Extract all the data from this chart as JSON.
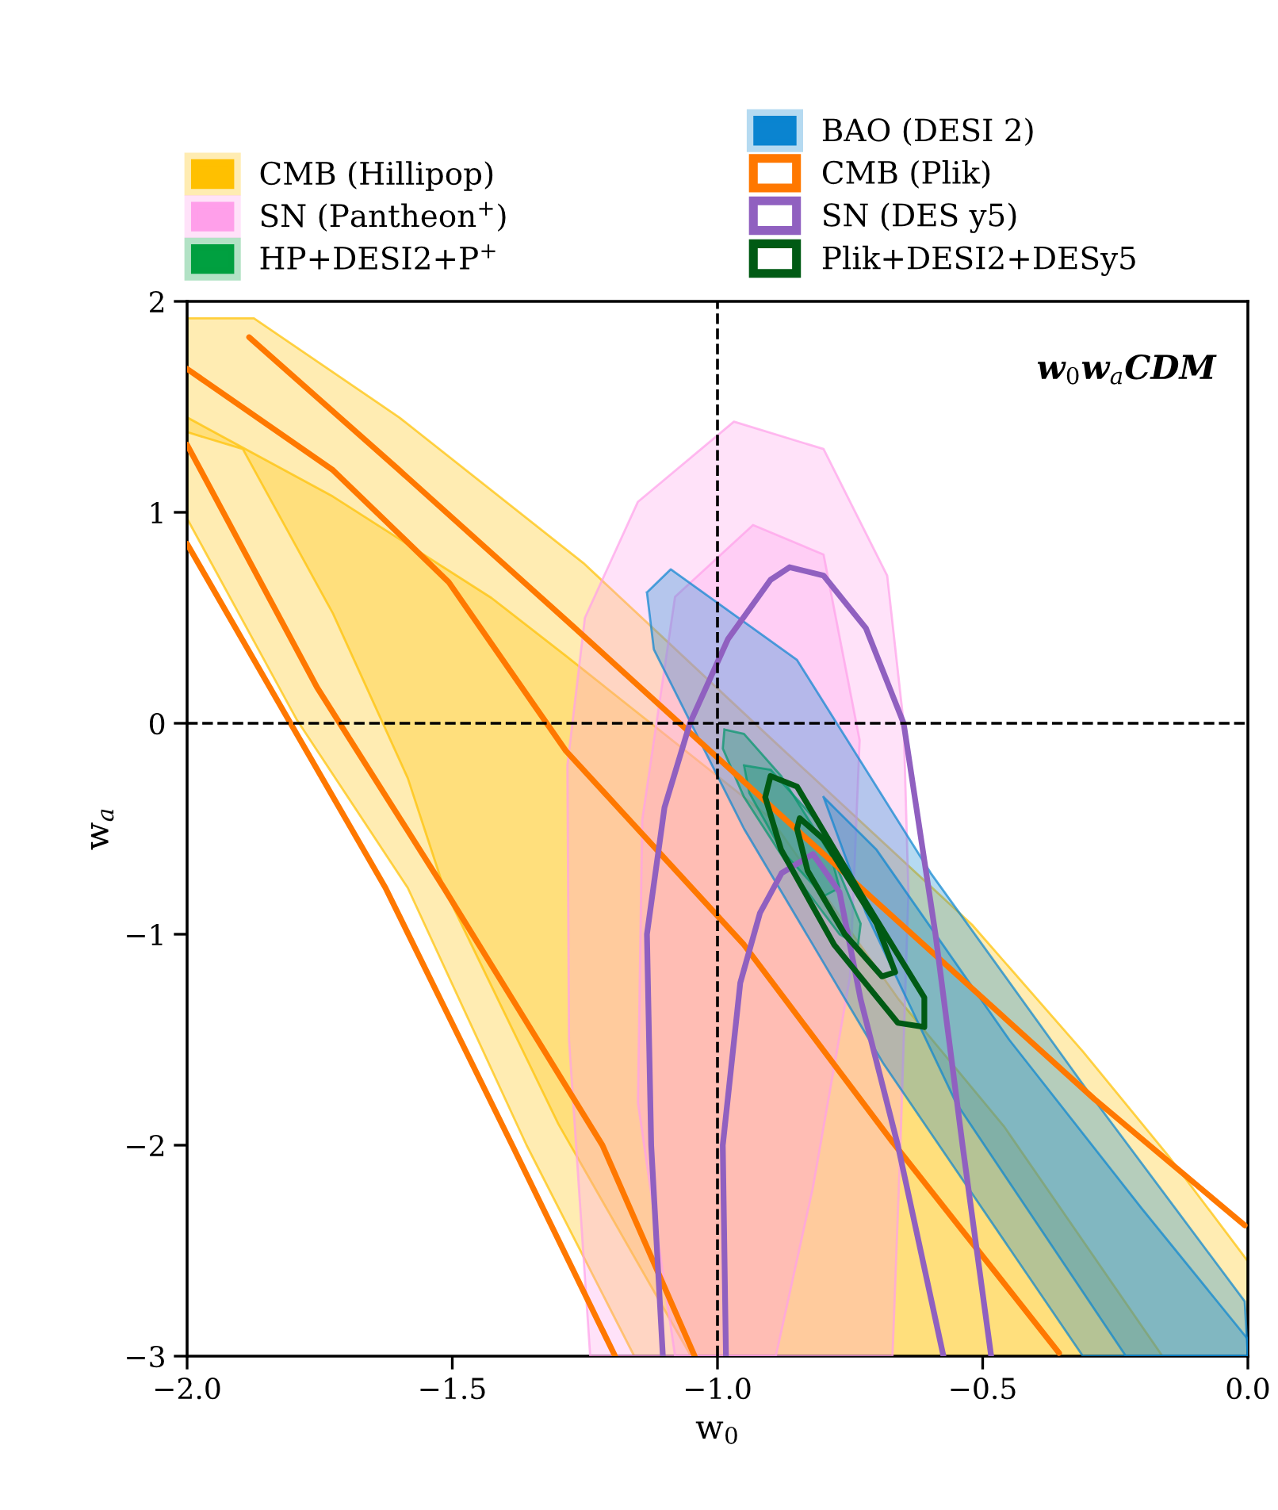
{
  "chart_data": {
    "type": "area",
    "title": "w$_{0}$w$_{a}$CDM",
    "xlabel": "w$_{0}$",
    "ylabel": "w$_{a}$",
    "xlim": [
      -2.0,
      0.0
    ],
    "ylim": [
      -3,
      2
    ],
    "xticks": [
      {
        "value": -2.0,
        "label": "−2.0"
      },
      {
        "value": -1.5,
        "label": "−1.5"
      },
      {
        "value": -1.0,
        "label": "−1.0"
      },
      {
        "value": -0.5,
        "label": "−0.5"
      },
      {
        "value": 0.0,
        "label": "0.0"
      }
    ],
    "yticks": [
      {
        "value": -3,
        "label": "−3"
      },
      {
        "value": -2,
        "label": "−2"
      },
      {
        "value": -1,
        "label": "−1"
      },
      0,
      1,
      2
    ],
    "legend": "top",
    "grid": false,
    "ref_lines": [
      {
        "axis": "x",
        "value": -1.0,
        "color": "#000000",
        "line_style": "dashed"
      },
      {
        "axis": "y",
        "value": 0,
        "color": "#000000",
        "line_style": "dashed"
      }
    ],
    "series": [
      {
        "name": "CMB (Hillipop)",
        "color": "#ffc000",
        "x": [
          -2,
          -1.874,
          -1.6,
          -1.253,
          -0.9,
          -0.52,
          -0.311,
          -0.15,
          0,
          0,
          -1.157,
          -1.36,
          -1.584,
          -1.794,
          -2
        ],
        "values": [
          1.92,
          1.92,
          1.45,
          0.76,
          -0.07,
          -0.955,
          -1.556,
          -2.05,
          -2.55,
          -3,
          -3,
          -2,
          -0.78,
          0.02,
          0.97
        ]
      },
      {
        "color": "#ffc000",
        "x": [
          -2,
          -1.725,
          -1.426,
          -1.286,
          -0.9,
          -0.658,
          -0.46,
          -0.161,
          -1.05,
          -1.3,
          -1.516,
          -1.584,
          -1.725,
          -1.895,
          -2
        ],
        "values": [
          1.45,
          1.075,
          0.594,
          0.32,
          -0.45,
          -1.31,
          -1.91,
          -3,
          -3,
          -1.9,
          -0.78,
          -0.26,
          0.52,
          1.3,
          1.38
        ]
      },
      {
        "name": "SN (Pantheon$^{+}$)",
        "color": "#ff9fea",
        "x": [
          -1.24,
          -1.28,
          -1.283,
          -1.25,
          -1.15,
          -0.969,
          -0.8,
          -0.68,
          -0.649,
          -0.64,
          -0.655,
          -0.67
        ],
        "values": [
          -3,
          -1.5,
          -0.2,
          0.5,
          1.05,
          1.43,
          1.3,
          0.7,
          0,
          -0.8,
          -2,
          -3
        ]
      },
      {
        "color": "#ff9fea",
        "x": [
          -1.08,
          -1.15,
          -1.142,
          -1.08,
          -0.933,
          -0.8,
          -0.732,
          -0.75,
          -0.82,
          -0.89
        ],
        "values": [
          -3,
          -1.8,
          -0.46,
          0.6,
          0.94,
          0.8,
          -0.08,
          -1.2,
          -2.2,
          -3
        ]
      },
      {
        "name": "HP+DESI2+P$^{+}$",
        "color": "#00a040",
        "x": [
          -0.987,
          -0.95,
          -0.88,
          -0.78,
          -0.73,
          -0.735,
          -0.77,
          -0.86,
          -0.95,
          -0.99
        ],
        "values": [
          -0.03,
          -0.05,
          -0.25,
          -0.65,
          -0.95,
          -1.05,
          -1.0,
          -0.7,
          -0.35,
          -0.12
        ]
      },
      {
        "color": "#00a040",
        "x": [
          -0.95,
          -0.9,
          -0.8,
          -0.77,
          -0.8,
          -0.88,
          -0.94
        ],
        "values": [
          -0.2,
          -0.22,
          -0.5,
          -0.78,
          -0.82,
          -0.6,
          -0.33
        ]
      },
      {
        "name": "BAO (DESI 2)",
        "color": "#0a84d0",
        "x": [
          -1.133,
          -1.088,
          -0.85,
          -0.598,
          -0.3,
          -0.006,
          0,
          -0.311,
          -0.688,
          -0.95,
          -1.12
        ],
        "values": [
          0.62,
          0.73,
          0.3,
          -0.71,
          -1.75,
          -2.74,
          -3,
          -3,
          -1.61,
          -0.5,
          0.35
        ]
      },
      {
        "color": "#0a84d0",
        "x": [
          -0.8,
          -0.7,
          -0.45,
          -0.2,
          0,
          0,
          -0.23,
          -0.55,
          -0.72
        ],
        "values": [
          -0.35,
          -0.6,
          -1.5,
          -2.3,
          -2.92,
          -3,
          -3,
          -1.8,
          -0.9
        ]
      },
      {
        "name": "CMB (Plik)",
        "type": "line",
        "color": "#ff7800",
        "x": [
          -1.883,
          -1.6,
          -1.277,
          -0.8,
          -0.29,
          -0.006,
          null,
          -2,
          -1.626,
          -1.387,
          -1.193
        ],
        "values": [
          1.83,
          1.2,
          0.47,
          -0.62,
          -1.78,
          -2.38,
          null,
          0.85,
          -0.78,
          -2,
          -3
        ]
      },
      {
        "type": "line",
        "color": "#ff7800",
        "x": [
          -2,
          -1.725,
          -1.507,
          -1.286,
          -0.95,
          -0.67,
          -0.356,
          null,
          -2,
          -1.755,
          -1.516,
          -1.217,
          -1.043
        ],
        "values": [
          1.68,
          1.2,
          0.67,
          -0.13,
          -1.05,
          -1.985,
          -2.985,
          null,
          1.32,
          0.17,
          -0.78,
          -2,
          -3
        ]
      },
      {
        "name": "SN (DES y5)",
        "type": "line",
        "color": "#9060c0",
        "x": [
          -1.103,
          -1.125,
          -1.133,
          -1.1,
          -1.052,
          -0.98,
          -0.9,
          -0.864,
          -0.8,
          -0.72,
          -0.649,
          -0.589,
          -0.538,
          -0.484
        ],
        "values": [
          -3,
          -2,
          -1,
          -0.4,
          0,
          0.4,
          0.68,
          0.74,
          0.7,
          0.45,
          0,
          -1,
          -2,
          -3
        ]
      },
      {
        "type": "line",
        "color": "#9060c0",
        "x": [
          -0.984,
          -0.99,
          -0.957,
          -0.92,
          -0.879,
          -0.82,
          -0.77,
          -0.73,
          -0.66,
          -0.574
        ],
        "values": [
          -3,
          -2,
          -1.23,
          -0.9,
          -0.71,
          -0.62,
          -0.8,
          -1.31,
          -2,
          -3
        ]
      },
      {
        "name": "Plik+DESI2+DESy5",
        "type": "line",
        "color": "#005a14",
        "x": [
          -0.91,
          -0.9,
          -0.85,
          -0.72,
          -0.61,
          -0.61,
          null,
          -0.61,
          -0.66,
          -0.78,
          -0.88,
          -0.91
        ],
        "values": [
          -0.35,
          -0.25,
          -0.3,
          -0.85,
          -1.3,
          -1.44,
          null,
          -1.44,
          -1.42,
          -1.05,
          -0.6,
          -0.35
        ]
      },
      {
        "type": "line",
        "color": "#005a14",
        "x": [
          -0.85,
          -0.845,
          -0.8,
          -0.7,
          -0.665,
          null,
          -0.665,
          -0.69,
          -0.76,
          -0.83,
          -0.85
        ],
        "values": [
          -0.5,
          -0.45,
          -0.55,
          -0.95,
          -1.18,
          null,
          -1.18,
          -1.2,
          -1.0,
          -0.7,
          -0.5
        ]
      }
    ]
  }
}
